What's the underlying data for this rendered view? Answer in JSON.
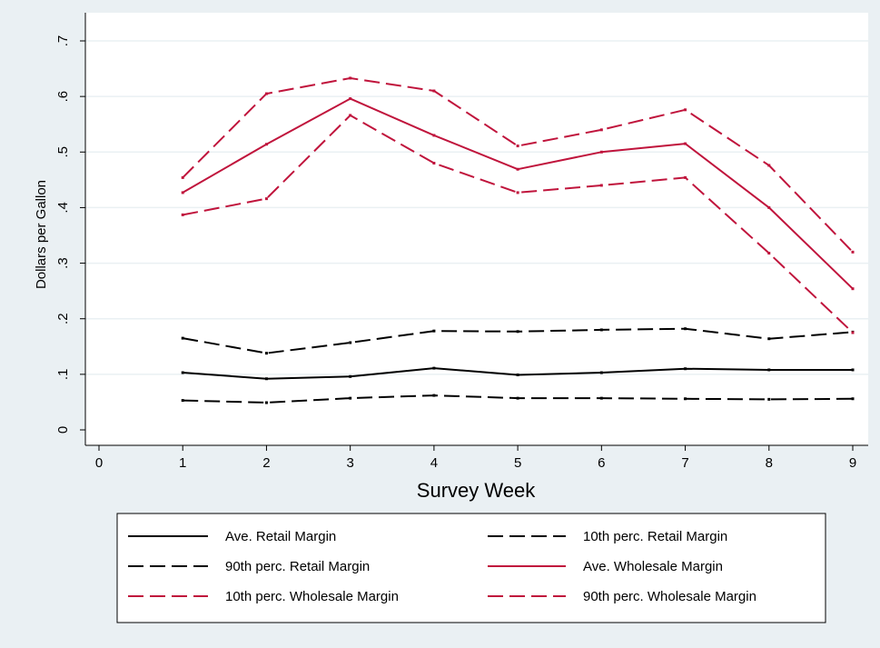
{
  "chart_data": {
    "type": "line",
    "xlabel": "Survey Week",
    "ylabel": "Dollars per Gallon",
    "xlim": [
      0,
      9
    ],
    "ylim": [
      0,
      0.7
    ],
    "x_ticks": [
      0,
      1,
      2,
      3,
      4,
      5,
      6,
      7,
      8,
      9
    ],
    "x_tick_labels": [
      "0",
      "1",
      "2",
      "3",
      "4",
      "5",
      "6",
      "7",
      "8",
      "9"
    ],
    "y_ticks": [
      0,
      0.1,
      0.2,
      0.3,
      0.4,
      0.5,
      0.6,
      0.7
    ],
    "y_tick_labels": [
      "0",
      ".1",
      ".2",
      ".3",
      ".4",
      ".5",
      ".6",
      ".7"
    ],
    "grid": "horizontal",
    "legend_position": "bottom",
    "x": [
      1,
      2,
      3,
      4,
      5,
      6,
      7,
      8,
      9
    ],
    "series": [
      {
        "name": "Ave. Retail Margin",
        "color": "#000000",
        "dash": "solid",
        "values": [
          0.103,
          0.092,
          0.096,
          0.111,
          0.099,
          0.103,
          0.11,
          0.108,
          0.108
        ]
      },
      {
        "name": "10th perc. Retail Margin",
        "color": "#000000",
        "dash": "dashed",
        "values": [
          0.053,
          0.049,
          0.057,
          0.062,
          0.057,
          0.057,
          0.056,
          0.055,
          0.056
        ]
      },
      {
        "name": "90th perc. Retail Margin",
        "color": "#000000",
        "dash": "dashed",
        "values": [
          0.165,
          0.138,
          0.157,
          0.178,
          0.177,
          0.18,
          0.182,
          0.164,
          0.176
        ]
      },
      {
        "name": "Ave. Wholesale Margin",
        "color": "#c0143c",
        "dash": "solid",
        "values": [
          0.427,
          0.514,
          0.596,
          0.53,
          0.469,
          0.5,
          0.515,
          0.4,
          0.254
        ]
      },
      {
        "name": "10th perc. Wholesale Margin",
        "color": "#c0143c",
        "dash": "dashed",
        "values": [
          0.387,
          0.416,
          0.566,
          0.48,
          0.427,
          0.44,
          0.454,
          0.318,
          0.175
        ]
      },
      {
        "name": "90th perc. Wholesale Margin",
        "color": "#c0143c",
        "dash": "dashed",
        "values": [
          0.454,
          0.605,
          0.633,
          0.61,
          0.511,
          0.54,
          0.576,
          0.476,
          0.32
        ]
      }
    ]
  }
}
